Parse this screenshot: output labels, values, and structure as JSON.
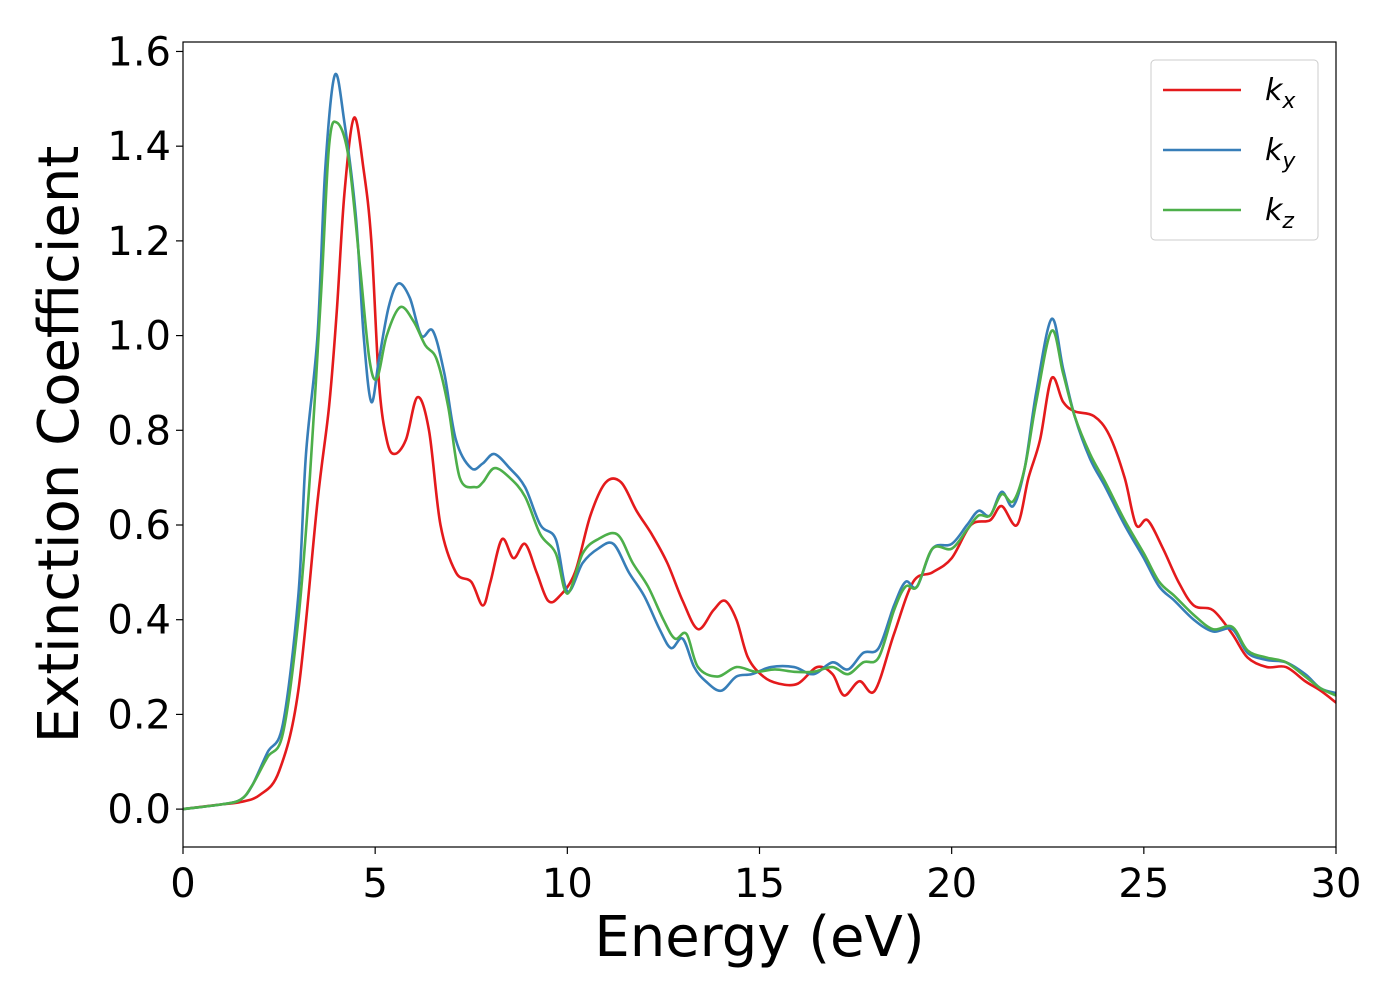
{
  "chart_data": {
    "type": "line",
    "title": "",
    "xlabel": "Energy (eV)",
    "ylabel": "Extinction Coefficient",
    "xlim": [
      0,
      30
    ],
    "ylim": [
      -0.08,
      1.62
    ],
    "xticks": [
      0,
      5,
      10,
      15,
      20,
      25,
      30
    ],
    "yticks": [
      0.0,
      0.2,
      0.4,
      0.6,
      0.8,
      1.0,
      1.2,
      1.4,
      1.6
    ],
    "grid": false,
    "legend_position": "top-right",
    "series": [
      {
        "name": "k",
        "subscript": "x",
        "color": "#e41a1c",
        "points": [
          [
            0,
            0
          ],
          [
            1,
            0.01
          ],
          [
            1.5,
            0.015
          ],
          [
            2,
            0.03
          ],
          [
            2.5,
            0.08
          ],
          [
            3,
            0.25
          ],
          [
            3.5,
            0.65
          ],
          [
            3.8,
            0.85
          ],
          [
            4.0,
            1.05
          ],
          [
            4.2,
            1.3
          ],
          [
            4.45,
            1.46
          ],
          [
            4.7,
            1.35
          ],
          [
            4.9,
            1.2
          ],
          [
            5.1,
            0.9
          ],
          [
            5.3,
            0.78
          ],
          [
            5.5,
            0.75
          ],
          [
            5.8,
            0.78
          ],
          [
            6.1,
            0.87
          ],
          [
            6.4,
            0.8
          ],
          [
            6.7,
            0.6
          ],
          [
            7.1,
            0.5
          ],
          [
            7.5,
            0.48
          ],
          [
            7.8,
            0.43
          ],
          [
            8.0,
            0.48
          ],
          [
            8.3,
            0.57
          ],
          [
            8.6,
            0.53
          ],
          [
            8.9,
            0.56
          ],
          [
            9.2,
            0.5
          ],
          [
            9.5,
            0.44
          ],
          [
            9.8,
            0.45
          ],
          [
            10.2,
            0.5
          ],
          [
            10.6,
            0.62
          ],
          [
            11.0,
            0.69
          ],
          [
            11.4,
            0.69
          ],
          [
            11.8,
            0.63
          ],
          [
            12.2,
            0.58
          ],
          [
            12.6,
            0.52
          ],
          [
            13.0,
            0.44
          ],
          [
            13.4,
            0.38
          ],
          [
            13.8,
            0.42
          ],
          [
            14.1,
            0.44
          ],
          [
            14.4,
            0.4
          ],
          [
            14.7,
            0.32
          ],
          [
            15.1,
            0.28
          ],
          [
            15.5,
            0.265
          ],
          [
            16.0,
            0.265
          ],
          [
            16.5,
            0.3
          ],
          [
            16.9,
            0.285
          ],
          [
            17.2,
            0.24
          ],
          [
            17.6,
            0.27
          ],
          [
            18.0,
            0.25
          ],
          [
            18.5,
            0.37
          ],
          [
            19.0,
            0.48
          ],
          [
            19.5,
            0.5
          ],
          [
            20.0,
            0.53
          ],
          [
            20.5,
            0.6
          ],
          [
            21.0,
            0.61
          ],
          [
            21.3,
            0.64
          ],
          [
            21.7,
            0.6
          ],
          [
            22.0,
            0.7
          ],
          [
            22.3,
            0.78
          ],
          [
            22.6,
            0.91
          ],
          [
            22.9,
            0.86
          ],
          [
            23.2,
            0.84
          ],
          [
            23.7,
            0.83
          ],
          [
            24.1,
            0.79
          ],
          [
            24.5,
            0.7
          ],
          [
            24.8,
            0.6
          ],
          [
            25.1,
            0.61
          ],
          [
            25.5,
            0.55
          ],
          [
            25.9,
            0.48
          ],
          [
            26.3,
            0.43
          ],
          [
            26.8,
            0.42
          ],
          [
            27.3,
            0.37
          ],
          [
            27.7,
            0.32
          ],
          [
            28.2,
            0.3
          ],
          [
            28.7,
            0.3
          ],
          [
            29.2,
            0.27
          ],
          [
            29.6,
            0.25
          ],
          [
            30.0,
            0.225
          ]
        ]
      },
      {
        "name": "k",
        "subscript": "y",
        "color": "#377eb8",
        "points": [
          [
            0,
            0
          ],
          [
            1,
            0.01
          ],
          [
            1.5,
            0.02
          ],
          [
            1.8,
            0.05
          ],
          [
            2.2,
            0.12
          ],
          [
            2.6,
            0.18
          ],
          [
            3.0,
            0.45
          ],
          [
            3.2,
            0.75
          ],
          [
            3.5,
            1.0
          ],
          [
            3.7,
            1.35
          ],
          [
            3.95,
            1.55
          ],
          [
            4.2,
            1.45
          ],
          [
            4.5,
            1.25
          ],
          [
            4.7,
            1.0
          ],
          [
            4.9,
            0.86
          ],
          [
            5.1,
            0.95
          ],
          [
            5.35,
            1.06
          ],
          [
            5.6,
            1.11
          ],
          [
            5.9,
            1.08
          ],
          [
            6.2,
            1.0
          ],
          [
            6.5,
            1.01
          ],
          [
            6.8,
            0.92
          ],
          [
            7.1,
            0.78
          ],
          [
            7.5,
            0.72
          ],
          [
            7.8,
            0.73
          ],
          [
            8.1,
            0.75
          ],
          [
            8.5,
            0.72
          ],
          [
            8.9,
            0.68
          ],
          [
            9.3,
            0.6
          ],
          [
            9.7,
            0.57
          ],
          [
            10.0,
            0.46
          ],
          [
            10.4,
            0.52
          ],
          [
            10.8,
            0.55
          ],
          [
            11.2,
            0.56
          ],
          [
            11.6,
            0.5
          ],
          [
            12.0,
            0.45
          ],
          [
            12.4,
            0.38
          ],
          [
            12.7,
            0.34
          ],
          [
            13.0,
            0.36
          ],
          [
            13.3,
            0.3
          ],
          [
            13.6,
            0.27
          ],
          [
            14.0,
            0.25
          ],
          [
            14.4,
            0.28
          ],
          [
            14.8,
            0.285
          ],
          [
            15.3,
            0.3
          ],
          [
            15.9,
            0.3
          ],
          [
            16.4,
            0.285
          ],
          [
            16.9,
            0.31
          ],
          [
            17.3,
            0.295
          ],
          [
            17.7,
            0.33
          ],
          [
            18.1,
            0.34
          ],
          [
            18.5,
            0.43
          ],
          [
            18.8,
            0.48
          ],
          [
            19.1,
            0.47
          ],
          [
            19.5,
            0.55
          ],
          [
            20.0,
            0.56
          ],
          [
            20.4,
            0.6
          ],
          [
            20.7,
            0.63
          ],
          [
            21.0,
            0.62
          ],
          [
            21.3,
            0.67
          ],
          [
            21.6,
            0.64
          ],
          [
            21.9,
            0.72
          ],
          [
            22.2,
            0.88
          ],
          [
            22.6,
            1.035
          ],
          [
            22.9,
            0.93
          ],
          [
            23.2,
            0.83
          ],
          [
            23.6,
            0.74
          ],
          [
            24.0,
            0.68
          ],
          [
            24.5,
            0.6
          ],
          [
            25.0,
            0.53
          ],
          [
            25.4,
            0.47
          ],
          [
            25.8,
            0.44
          ],
          [
            26.3,
            0.4
          ],
          [
            26.8,
            0.375
          ],
          [
            27.3,
            0.38
          ],
          [
            27.7,
            0.33
          ],
          [
            28.2,
            0.315
          ],
          [
            28.7,
            0.31
          ],
          [
            29.2,
            0.285
          ],
          [
            29.6,
            0.255
          ],
          [
            30.0,
            0.245
          ]
        ]
      },
      {
        "name": "k",
        "subscript": "z",
        "color": "#4daf4a",
        "points": [
          [
            0,
            0
          ],
          [
            1,
            0.01
          ],
          [
            1.5,
            0.02
          ],
          [
            1.8,
            0.05
          ],
          [
            2.2,
            0.11
          ],
          [
            2.6,
            0.16
          ],
          [
            3.0,
            0.4
          ],
          [
            3.3,
            0.7
          ],
          [
            3.6,
            1.1
          ],
          [
            3.8,
            1.4
          ],
          [
            4.0,
            1.45
          ],
          [
            4.3,
            1.38
          ],
          [
            4.6,
            1.15
          ],
          [
            4.85,
            0.95
          ],
          [
            5.05,
            0.91
          ],
          [
            5.3,
            1.0
          ],
          [
            5.65,
            1.06
          ],
          [
            6.0,
            1.03
          ],
          [
            6.3,
            0.98
          ],
          [
            6.6,
            0.95
          ],
          [
            6.9,
            0.85
          ],
          [
            7.2,
            0.7
          ],
          [
            7.6,
            0.68
          ],
          [
            7.8,
            0.69
          ],
          [
            8.1,
            0.72
          ],
          [
            8.5,
            0.7
          ],
          [
            8.9,
            0.66
          ],
          [
            9.3,
            0.58
          ],
          [
            9.7,
            0.54
          ],
          [
            10.0,
            0.455
          ],
          [
            10.4,
            0.54
          ],
          [
            10.8,
            0.57
          ],
          [
            11.3,
            0.58
          ],
          [
            11.7,
            0.52
          ],
          [
            12.1,
            0.47
          ],
          [
            12.5,
            0.4
          ],
          [
            12.8,
            0.36
          ],
          [
            13.1,
            0.37
          ],
          [
            13.4,
            0.3
          ],
          [
            13.9,
            0.28
          ],
          [
            14.4,
            0.3
          ],
          [
            14.9,
            0.29
          ],
          [
            15.4,
            0.295
          ],
          [
            15.9,
            0.29
          ],
          [
            16.4,
            0.29
          ],
          [
            16.9,
            0.3
          ],
          [
            17.3,
            0.285
          ],
          [
            17.7,
            0.31
          ],
          [
            18.1,
            0.32
          ],
          [
            18.5,
            0.42
          ],
          [
            18.8,
            0.47
          ],
          [
            19.1,
            0.47
          ],
          [
            19.5,
            0.55
          ],
          [
            20.0,
            0.55
          ],
          [
            20.4,
            0.59
          ],
          [
            20.7,
            0.62
          ],
          [
            21.0,
            0.62
          ],
          [
            21.3,
            0.665
          ],
          [
            21.6,
            0.65
          ],
          [
            21.9,
            0.72
          ],
          [
            22.2,
            0.86
          ],
          [
            22.6,
            1.01
          ],
          [
            22.9,
            0.92
          ],
          [
            23.2,
            0.83
          ],
          [
            23.6,
            0.75
          ],
          [
            24.0,
            0.69
          ],
          [
            24.5,
            0.61
          ],
          [
            25.0,
            0.54
          ],
          [
            25.4,
            0.48
          ],
          [
            25.8,
            0.45
          ],
          [
            26.3,
            0.41
          ],
          [
            26.8,
            0.38
          ],
          [
            27.3,
            0.385
          ],
          [
            27.7,
            0.335
          ],
          [
            28.2,
            0.32
          ],
          [
            28.7,
            0.31
          ],
          [
            29.2,
            0.28
          ],
          [
            29.6,
            0.255
          ],
          [
            30.0,
            0.24
          ]
        ]
      }
    ]
  }
}
